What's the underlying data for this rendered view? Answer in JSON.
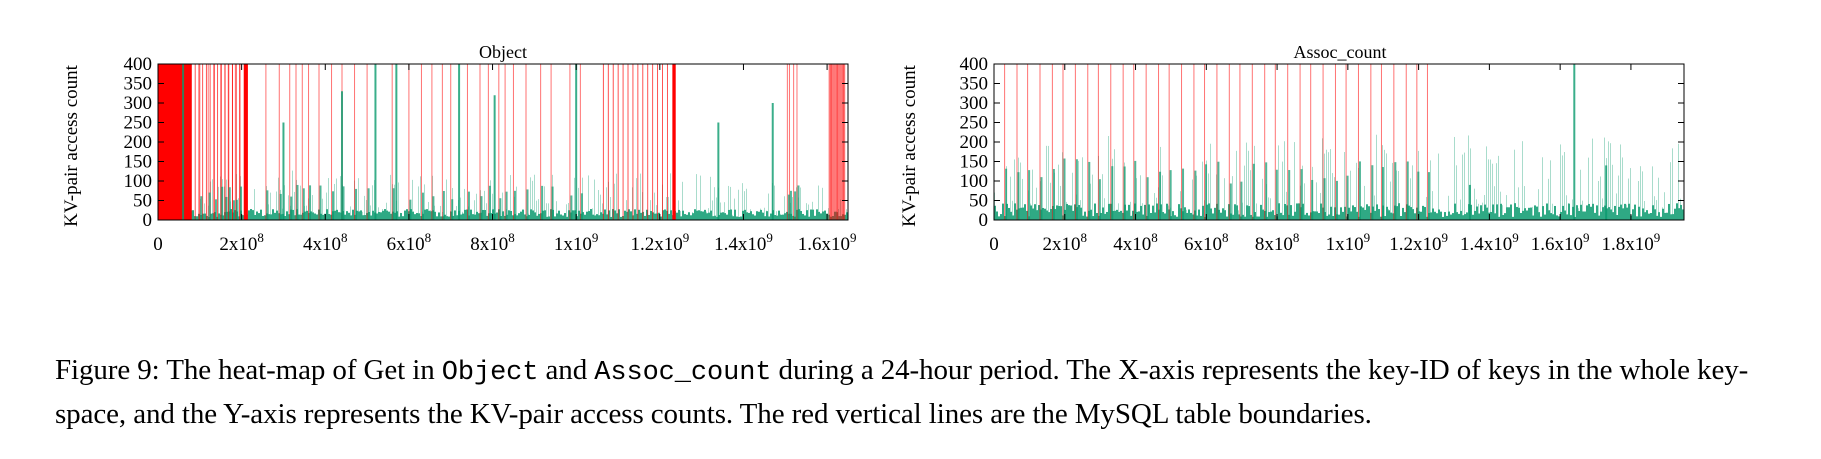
{
  "colors": {
    "boundary": "#ff0000",
    "heat": "#0a9a6e",
    "axis": "#000000"
  },
  "chart_data": [
    {
      "type": "heatmap",
      "title": "Object",
      "xlabel": "",
      "ylabel": "KV-pair access count",
      "xlim": [
        0,
        1650000000
      ],
      "ylim": [
        0,
        400
      ],
      "yticks": [
        0,
        50,
        100,
        150,
        200,
        250,
        300,
        350,
        400
      ],
      "yticklabels": [
        "0",
        "50",
        "100",
        "150",
        "200",
        "250",
        "300",
        "350",
        "400"
      ],
      "xticks": [
        0,
        200000000,
        400000000,
        600000000,
        800000000,
        1000000000,
        1200000000,
        1400000000,
        1600000000
      ],
      "xticklabels": [
        {
          "base": "0",
          "exp": ""
        },
        {
          "base": "2x10",
          "exp": "8"
        },
        {
          "base": "4x10",
          "exp": "8"
        },
        {
          "base": "6x10",
          "exp": "8"
        },
        {
          "base": "8x10",
          "exp": "8"
        },
        {
          "base": "1x10",
          "exp": "9"
        },
        {
          "base": "1.2x10",
          "exp": "9"
        },
        {
          "base": "1.4x10",
          "exp": "9"
        },
        {
          "base": "1.6x10",
          "exp": "9"
        }
      ],
      "boundary_bands": [
        [
          0,
          80000000
        ],
        [
          205000000,
          215000000
        ],
        [
          1230000000,
          1238000000
        ]
      ],
      "boundary_dense_ranges": [
        [
          80000000,
          205000000
        ],
        [
          1065000000,
          1230000000
        ],
        [
          1605000000,
          1645000000
        ]
      ],
      "boundaries": [
        100000000,
        120000000,
        135000000,
        150000000,
        160000000,
        168000000,
        178000000,
        185000000,
        195000000,
        258000000,
        290000000,
        315000000,
        330000000,
        345000000,
        360000000,
        385000000,
        415000000,
        440000000,
        470000000,
        500000000,
        560000000,
        600000000,
        630000000,
        655000000,
        680000000,
        700000000,
        740000000,
        770000000,
        790000000,
        815000000,
        830000000,
        850000000,
        880000000,
        915000000,
        940000000,
        985000000,
        1010000000,
        1505000000,
        1510000000,
        1520000000,
        1528000000
      ],
      "heat_spikes": [
        [
          60000000,
          400
        ],
        [
          300000000,
          250
        ],
        [
          440000000,
          330
        ],
        [
          520000000,
          400
        ],
        [
          570000000,
          400
        ],
        [
          720000000,
          400
        ],
        [
          805000000,
          320
        ],
        [
          1000000000,
          400
        ],
        [
          1340000000,
          250
        ],
        [
          1470000000,
          300
        ]
      ]
    },
    {
      "type": "heatmap",
      "title": "Assoc_count",
      "xlabel": "",
      "ylabel": "KV-pair access count",
      "xlim": [
        0,
        1950000000
      ],
      "ylim": [
        0,
        400
      ],
      "yticks": [
        0,
        50,
        100,
        150,
        200,
        250,
        300,
        350,
        400
      ],
      "yticklabels": [
        "0",
        "50",
        "100",
        "150",
        "200",
        "250",
        "300",
        "350",
        "400"
      ],
      "xticks": [
        0,
        200000000,
        400000000,
        600000000,
        800000000,
        1000000000,
        1200000000,
        1400000000,
        1600000000,
        1800000000
      ],
      "xticklabels": [
        {
          "base": "0",
          "exp": ""
        },
        {
          "base": "2x10",
          "exp": "8"
        },
        {
          "base": "4x10",
          "exp": "8"
        },
        {
          "base": "6x10",
          "exp": "8"
        },
        {
          "base": "8x10",
          "exp": "8"
        },
        {
          "base": "1x10",
          "exp": "9"
        },
        {
          "base": "1.2x10",
          "exp": "9"
        },
        {
          "base": "1.4x10",
          "exp": "9"
        },
        {
          "base": "1.6x10",
          "exp": "9"
        },
        {
          "base": "1.8x10",
          "exp": "9"
        }
      ],
      "boundary_bands": [],
      "boundary_dense_ranges": [],
      "boundaries": [
        30000000,
        65000000,
        95000000,
        130000000,
        165000000,
        195000000,
        230000000,
        265000000,
        295000000,
        330000000,
        365000000,
        395000000,
        430000000,
        465000000,
        495000000,
        530000000,
        565000000,
        595000000,
        630000000,
        665000000,
        695000000,
        730000000,
        765000000,
        795000000,
        830000000,
        865000000,
        895000000,
        930000000,
        965000000,
        995000000,
        1030000000,
        1065000000,
        1095000000,
        1130000000,
        1165000000,
        1195000000,
        1225000000
      ],
      "heat_spikes": [
        [
          1640000000,
          400
        ],
        [
          1730000000,
          140
        ],
        [
          1345000000,
          90
        ]
      ]
    }
  ],
  "caption": {
    "part1": "Figure 9: The heat-map of Get in ",
    "code1": "Object",
    "part2": " and ",
    "code2": "Assoc_count",
    "part3": " during a 24-hour period. The X-axis represents the key-ID of keys in the whole key-space, and the Y-axis represents the KV-pair access counts. The red vertical lines are the MySQL table boundaries."
  }
}
